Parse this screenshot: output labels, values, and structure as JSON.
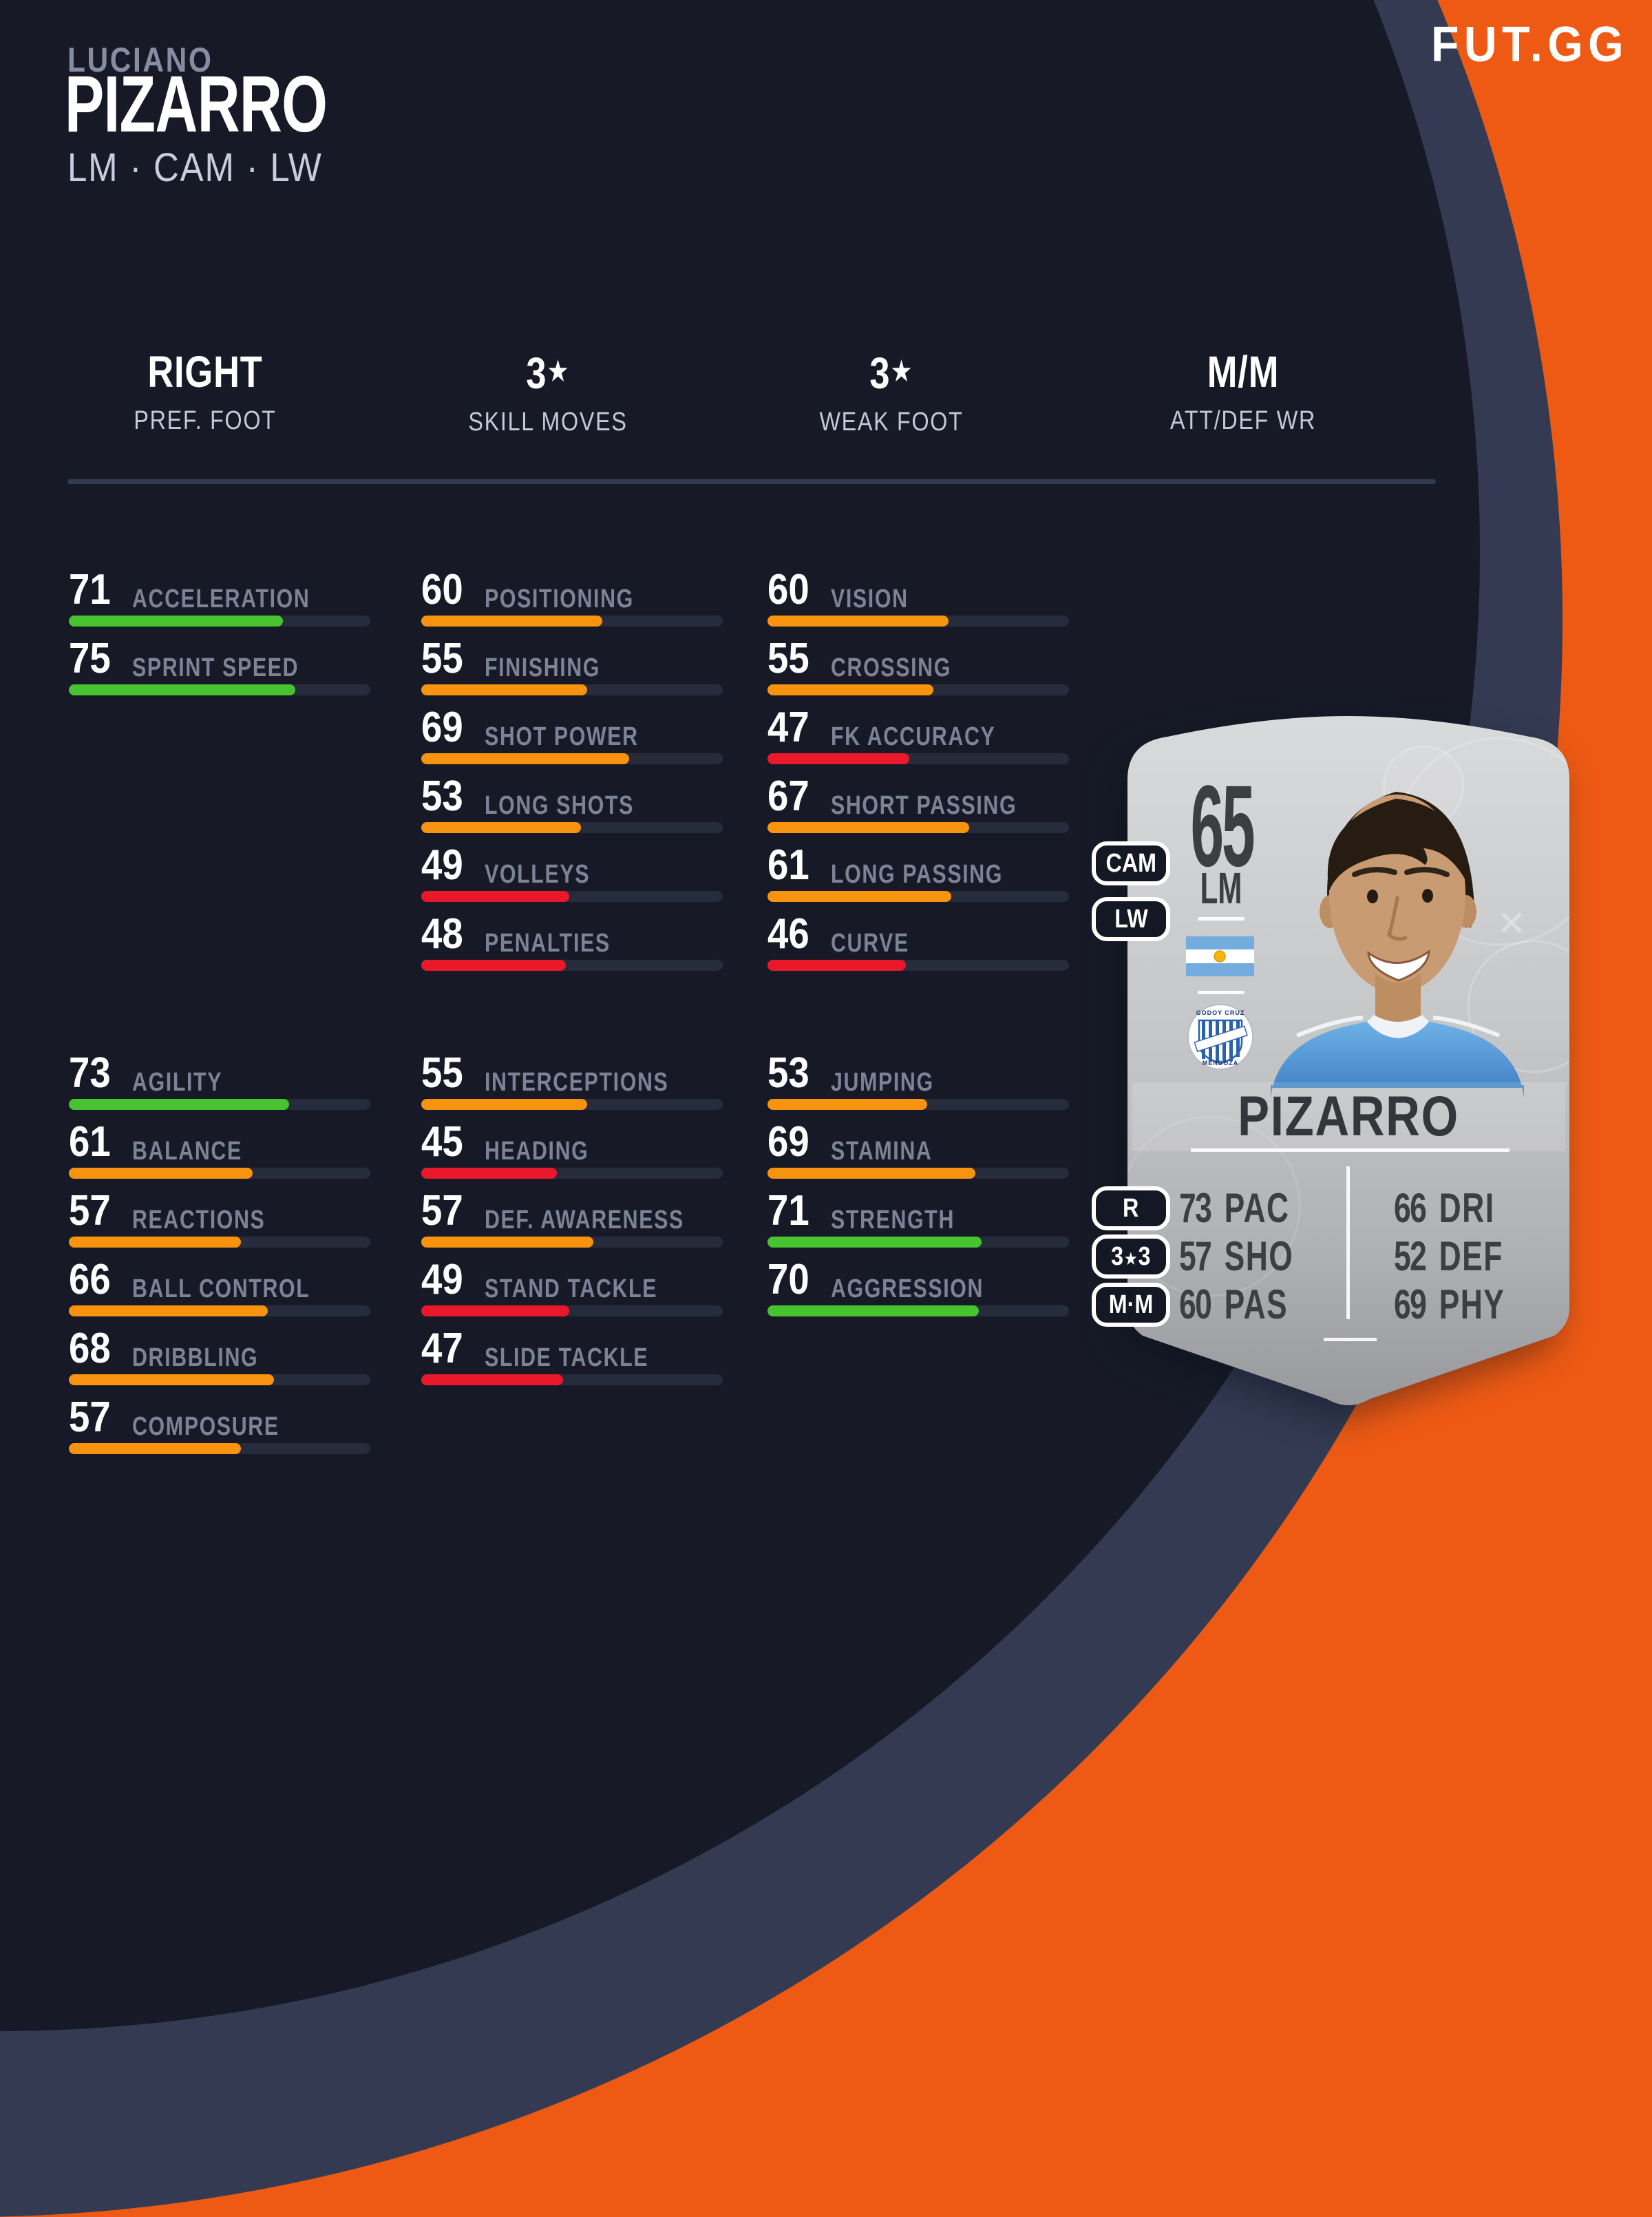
{
  "brand": {
    "logo": "FUT.GG"
  },
  "header": {
    "first_name": "LUCIANO",
    "last_name": "PIZARRO",
    "positions": "LM · CAM · LW"
  },
  "info": {
    "items": [
      {
        "value": "RIGHT",
        "star": false,
        "label": "PREF. FOOT"
      },
      {
        "value": "3",
        "star": true,
        "label": "SKILL MOVES"
      },
      {
        "value": "3",
        "star": true,
        "label": "WEAK FOOT"
      },
      {
        "value": "M/M",
        "star": false,
        "label": "ATT/DEF WR"
      }
    ]
  },
  "stats": {
    "col1": {
      "top": [
        {
          "value": 71,
          "label": "ACCELERATION"
        },
        {
          "value": 75,
          "label": "SPRINT SPEED"
        }
      ],
      "bottom": [
        {
          "value": 73,
          "label": "AGILITY"
        },
        {
          "value": 61,
          "label": "BALANCE"
        },
        {
          "value": 57,
          "label": "REACTIONS"
        },
        {
          "value": 66,
          "label": "BALL CONTROL"
        },
        {
          "value": 68,
          "label": "DRIBBLING"
        },
        {
          "value": 57,
          "label": "COMPOSURE"
        }
      ]
    },
    "col2": {
      "top": [
        {
          "value": 60,
          "label": "POSITIONING"
        },
        {
          "value": 55,
          "label": "FINISHING"
        },
        {
          "value": 69,
          "label": "SHOT POWER"
        },
        {
          "value": 53,
          "label": "LONG SHOTS"
        },
        {
          "value": 49,
          "label": "VOLLEYS"
        },
        {
          "value": 48,
          "label": "PENALTIES"
        }
      ],
      "bottom": [
        {
          "value": 55,
          "label": "INTERCEPTIONS"
        },
        {
          "value": 45,
          "label": "HEADING"
        },
        {
          "value": 57,
          "label": "DEF. AWARENESS"
        },
        {
          "value": 49,
          "label": "STAND TACKLE"
        },
        {
          "value": 47,
          "label": "SLIDE TACKLE"
        }
      ]
    },
    "col3": {
      "top": [
        {
          "value": 60,
          "label": "VISION"
        },
        {
          "value": 55,
          "label": "CROSSING"
        },
        {
          "value": 47,
          "label": "FK ACCURACY"
        },
        {
          "value": 67,
          "label": "SHORT PASSING"
        },
        {
          "value": 61,
          "label": "LONG PASSING"
        },
        {
          "value": 46,
          "label": "CURVE"
        }
      ],
      "bottom": [
        {
          "value": 53,
          "label": "JUMPING"
        },
        {
          "value": 69,
          "label": "STAMINA"
        },
        {
          "value": 71,
          "label": "STRENGTH"
        },
        {
          "value": 70,
          "label": "AGGRESSION"
        }
      ]
    }
  },
  "card": {
    "rating": "65",
    "position": "LM",
    "alt_positions": [
      "CAM",
      "LW"
    ],
    "name": "PIZARRO",
    "nation_icon": "argentina-flag",
    "club_icon": "godoy-cruz-crest",
    "club_crest": {
      "top_text": "GODOY CRUZ",
      "bottom_text": "MENDOZA"
    },
    "badges": {
      "foot": "R",
      "skill_weak": "3★3",
      "workrate": "M·M"
    },
    "stats_left": [
      {
        "value": "73",
        "label": "PAC"
      },
      {
        "value": "57",
        "label": "SHO"
      },
      {
        "value": "60",
        "label": "PAS"
      }
    ],
    "stats_right": [
      {
        "value": "66",
        "label": "DRI"
      },
      {
        "value": "52",
        "label": "DEF"
      },
      {
        "value": "69",
        "label": "PHY"
      }
    ]
  },
  "icons": {
    "star": "★"
  },
  "colors": {
    "accent_orange": "#EE5A13",
    "panel_dark_navy": "#171A26",
    "panel_light_navy": "#333A52",
    "bar_green": "#47C330",
    "bar_orange": "#F8930F",
    "bar_red": "#E9192B",
    "bar_track": "#272C3C",
    "stat_label_gray": "#7C8396",
    "card_silver_top": "#D7D8DA",
    "card_silver_bottom": "#98999C"
  },
  "thresholds": {
    "green_min": 70,
    "orange_min": 50
  }
}
